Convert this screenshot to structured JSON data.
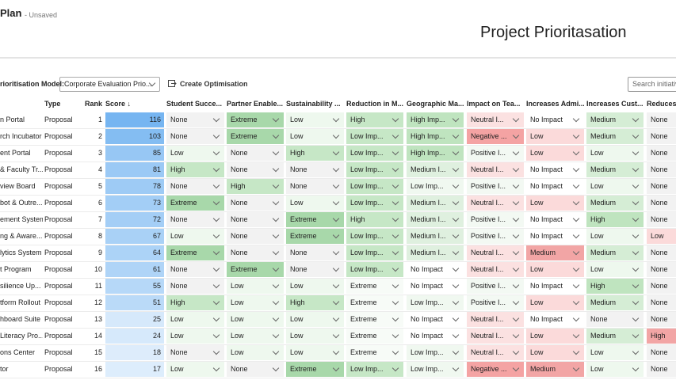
{
  "header": {
    "title": "Plan",
    "status": "- Unsaved",
    "page_title": "Project Prioritasation"
  },
  "toolbar": {
    "model_label": "rioritisation Model:",
    "model_value": "Corporate Evaluation Prio...",
    "action": "Create Optimisation",
    "search_placeholder": "Search initiativ"
  },
  "table": {
    "columns": [
      "Type",
      "Rank",
      "Score ↓",
      "Student Succe...",
      "Partner Enable...",
      "Sustainability ...",
      "Reduction in M...",
      "Geographic Ma...",
      "Impact on Tea...",
      "Increases Admi...",
      "Increases Cust...",
      "Reduces"
    ],
    "palettes": [
      {
        "None": "#f2f2f2",
        "Low": "#eef8ee",
        "High": "#c6e7c6",
        "Extreme": "#a8d8aa"
      },
      {
        "None": "#f2f2f2",
        "Low": "#eef8ee",
        "High": "#c6e7c6",
        "Extreme": "#a8d8aa"
      },
      {
        "None": "#f2f2f2",
        "Low": "#eef8ee",
        "High": "#c6e7c6",
        "Extreme": "#a8d8aa"
      },
      {
        "High": "#c6e7c6",
        "Low Imp...": "#c6e7c6",
        "Extreme": "#f7fbf7"
      },
      {
        "High Imp...": "#bfe4bf",
        "Medium I...": "#dff0df",
        "Low Imp...": "#f0f8f0",
        "No Impact": "#ffffff"
      },
      {
        "Neutral I...": "#fbe1e1",
        "Negative ...": "#f4a3a3",
        "Positive I...": "#f3f9f3"
      },
      {
        "No Impact": "#ffffff",
        "Low": "#fbdada",
        "Medium": "#f2a5a5"
      },
      {
        "None": "#f2f2f2",
        "Low": "#eef8ee",
        "Medium": "#d5edd5",
        "High": "#bfe4bf"
      },
      {
        "None": "#f2f2f2",
        "Low": "#fbdada",
        "High": "#f2a5a5"
      }
    ],
    "rows": [
      {
        "name": "n Portal",
        "type": "Proposal",
        "rank": 1,
        "score": 116,
        "ratings": [
          "None",
          "Extreme",
          "Low",
          "High",
          "High Imp...",
          "Neutral I...",
          "No Impact",
          "Medium",
          "None"
        ]
      },
      {
        "name": "rch Incubator",
        "type": "Proposal",
        "rank": 2,
        "score": 103,
        "ratings": [
          "None",
          "Extreme",
          "Low",
          "Low Imp...",
          "High Imp...",
          "Negative ...",
          "Low",
          "Medium",
          "None"
        ]
      },
      {
        "name": "ent Portal",
        "type": "Proposal",
        "rank": 3,
        "score": 85,
        "ratings": [
          "Low",
          "None",
          "High",
          "Low Imp...",
          "High Imp...",
          "Positive I...",
          "Low",
          "Low",
          "None"
        ]
      },
      {
        "name": "& Faculty Tr...",
        "type": "Proposal",
        "rank": 4,
        "score": 81,
        "ratings": [
          "High",
          "None",
          "None",
          "Low Imp...",
          "Medium I...",
          "Neutral I...",
          "No Impact",
          "Medium",
          "None"
        ]
      },
      {
        "name": "view Board",
        "type": "Proposal",
        "rank": 5,
        "score": 78,
        "ratings": [
          "None",
          "High",
          "None",
          "Low Imp...",
          "Low Imp...",
          "Positive I...",
          "No Impact",
          "Low",
          "None"
        ]
      },
      {
        "name": "bot & Outre...",
        "type": "Proposal",
        "rank": 6,
        "score": 73,
        "ratings": [
          "Extreme",
          "None",
          "Low",
          "Low Imp...",
          "Medium I...",
          "Neutral I...",
          "Low",
          "Medium",
          "None"
        ]
      },
      {
        "name": "ement System",
        "type": "Proposal",
        "rank": 7,
        "score": 72,
        "ratings": [
          "None",
          "None",
          "Extreme",
          "High",
          "Medium I...",
          "Positive I...",
          "No Impact",
          "High",
          "None"
        ]
      },
      {
        "name": "ng & Aware...",
        "type": "Proposal",
        "rank": 8,
        "score": 67,
        "ratings": [
          "Low",
          "None",
          "Extreme",
          "Low Imp...",
          "Medium I...",
          "Positive I...",
          "No Impact",
          "Low",
          "Low"
        ]
      },
      {
        "name": "lytics System",
        "type": "Proposal",
        "rank": 9,
        "score": 64,
        "ratings": [
          "Extreme",
          "None",
          "None",
          "Low Imp...",
          "Medium I...",
          "Neutral I...",
          "Medium",
          "Medium",
          "None"
        ]
      },
      {
        "name": "t Program",
        "type": "Proposal",
        "rank": 10,
        "score": 61,
        "ratings": [
          "None",
          "Extreme",
          "None",
          "Low Imp...",
          "No Impact",
          "Neutral I...",
          "Low",
          "Low",
          "None"
        ]
      },
      {
        "name": "silience Up...",
        "type": "Proposal",
        "rank": 11,
        "score": 55,
        "ratings": [
          "None",
          "Low",
          "Low",
          "Extreme",
          "No Impact",
          "Positive I...",
          "No Impact",
          "High",
          "None"
        ]
      },
      {
        "name": "tform Rollout",
        "type": "Proposal",
        "rank": 12,
        "score": 51,
        "ratings": [
          "High",
          "Low",
          "High",
          "Extreme",
          "Low Imp...",
          "Positive I...",
          "Low",
          "Medium",
          "None"
        ]
      },
      {
        "name": "hboard Suite",
        "type": "Proposal",
        "rank": 13,
        "score": 25,
        "ratings": [
          "Low",
          "Low",
          "Low",
          "Extreme",
          "No Impact",
          "Neutral I...",
          "No Impact",
          "None",
          "None"
        ]
      },
      {
        "name": "Literacy Pro...",
        "type": "Proposal",
        "rank": 14,
        "score": 24,
        "ratings": [
          "Low",
          "Low",
          "Low",
          "Extreme",
          "No Impact",
          "Neutral I...",
          "Low",
          "Medium",
          "High"
        ]
      },
      {
        "name": "ons Center",
        "type": "Proposal",
        "rank": 15,
        "score": 18,
        "ratings": [
          "None",
          "Low",
          "Low",
          "Extreme",
          "Low Imp...",
          "Neutral I...",
          "Low",
          "Low",
          "None"
        ]
      },
      {
        "name": "tor",
        "type": "Proposal",
        "rank": 16,
        "score": 17,
        "ratings": [
          "Low",
          "None",
          "Extreme",
          "Low Imp...",
          "Low Imp...",
          "Negative ...",
          "Medium",
          "Low",
          "None"
        ]
      }
    ]
  }
}
